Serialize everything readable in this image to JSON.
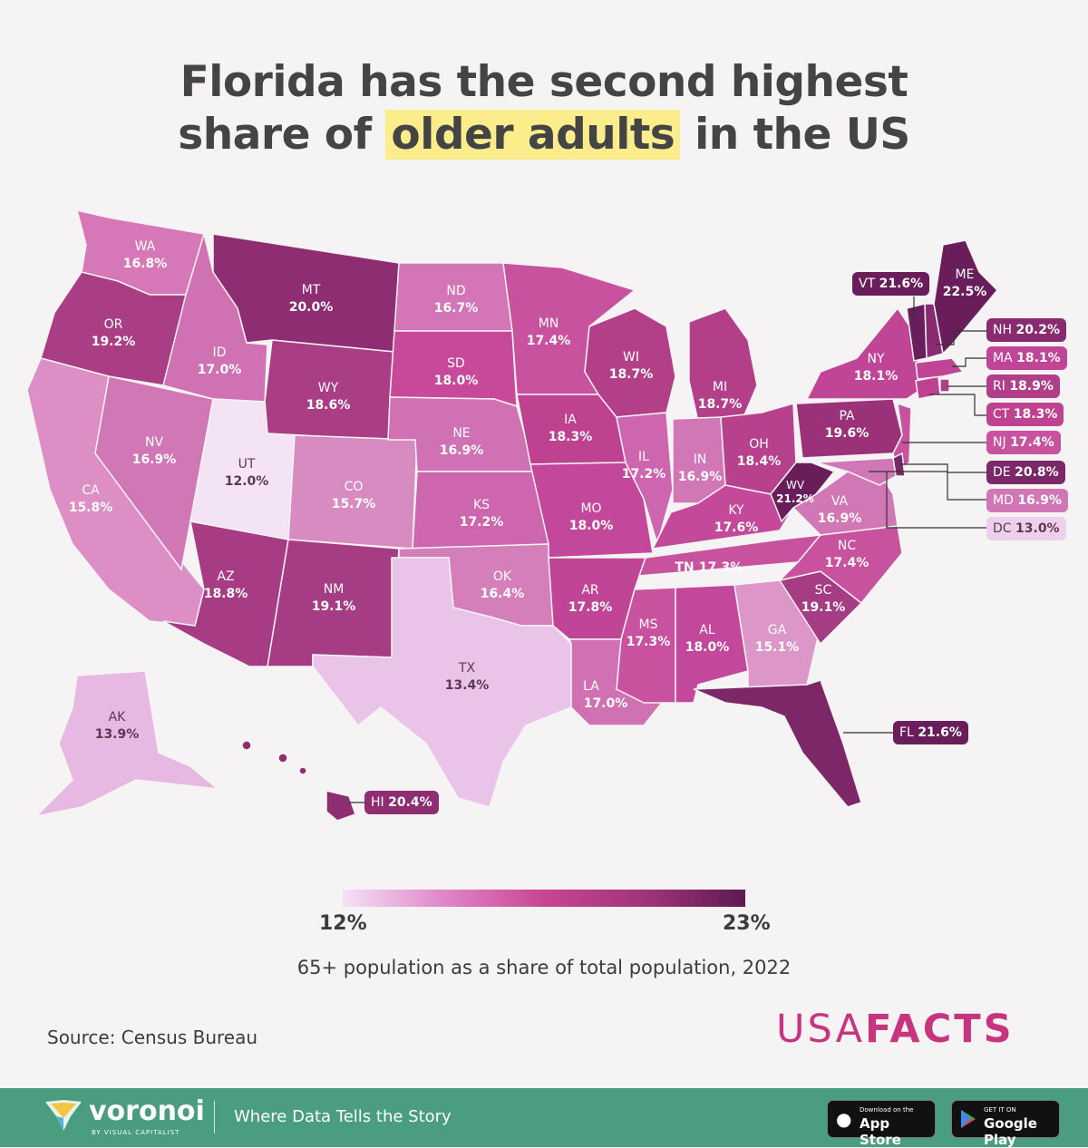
{
  "title": {
    "line1": "Florida has the second highest",
    "line2_prefix": "share of",
    "line2_highlight": "older adults",
    "line2_suffix": "in the US"
  },
  "states": {
    "WA": {
      "abbr": "WA",
      "value": "16.8%"
    },
    "OR": {
      "abbr": "OR",
      "value": "19.2%"
    },
    "CA": {
      "abbr": "CA",
      "value": "15.8%"
    },
    "NV": {
      "abbr": "NV",
      "value": "16.9%"
    },
    "ID": {
      "abbr": "ID",
      "value": "17.0%"
    },
    "MT": {
      "abbr": "MT",
      "value": "20.0%"
    },
    "WY": {
      "abbr": "WY",
      "value": "18.6%"
    },
    "UT": {
      "abbr": "UT",
      "value": "12.0%"
    },
    "CO": {
      "abbr": "CO",
      "value": "15.7%"
    },
    "AZ": {
      "abbr": "AZ",
      "value": "18.8%"
    },
    "NM": {
      "abbr": "NM",
      "value": "19.1%"
    },
    "ND": {
      "abbr": "ND",
      "value": "16.7%"
    },
    "SD": {
      "abbr": "SD",
      "value": "18.0%"
    },
    "NE": {
      "abbr": "NE",
      "value": "16.9%"
    },
    "KS": {
      "abbr": "KS",
      "value": "17.2%"
    },
    "OK": {
      "abbr": "OK",
      "value": "16.4%"
    },
    "TX": {
      "abbr": "TX",
      "value": "13.4%"
    },
    "MN": {
      "abbr": "MN",
      "value": "17.4%"
    },
    "IA": {
      "abbr": "IA",
      "value": "18.3%"
    },
    "MO": {
      "abbr": "MO",
      "value": "18.0%"
    },
    "AR": {
      "abbr": "AR",
      "value": "17.8%"
    },
    "LA": {
      "abbr": "LA",
      "value": "17.0%"
    },
    "WI": {
      "abbr": "WI",
      "value": "18.7%"
    },
    "IL": {
      "abbr": "IL",
      "value": "17.2%"
    },
    "MI": {
      "abbr": "MI",
      "value": "18.7%"
    },
    "IN": {
      "abbr": "IN",
      "value": "16.9%"
    },
    "OH": {
      "abbr": "OH",
      "value": "18.4%"
    },
    "KY": {
      "abbr": "KY",
      "value": "17.6%"
    },
    "TN": {
      "abbr": "TN",
      "value": "17.3%"
    },
    "MS": {
      "abbr": "MS",
      "value": "17.3%"
    },
    "AL": {
      "abbr": "AL",
      "value": "18.0%"
    },
    "GA": {
      "abbr": "GA",
      "value": "15.1%"
    },
    "SC": {
      "abbr": "SC",
      "value": "19.1%"
    },
    "NC": {
      "abbr": "NC",
      "value": "17.4%"
    },
    "VA": {
      "abbr": "VA",
      "value": "16.9%"
    },
    "WV": {
      "abbr": "WV",
      "value": "21.2%"
    },
    "PA": {
      "abbr": "PA",
      "value": "19.6%"
    },
    "NY": {
      "abbr": "NY",
      "value": "18.1%"
    },
    "ME": {
      "abbr": "ME",
      "value": "22.5%"
    },
    "AK": {
      "abbr": "AK",
      "value": "13.9%"
    }
  },
  "callouts": {
    "VT": {
      "abbr": "VT",
      "value": "21.6%"
    },
    "NH": {
      "abbr": "NH",
      "value": "20.2%"
    },
    "MA": {
      "abbr": "MA",
      "value": "18.1%"
    },
    "RI": {
      "abbr": "RI",
      "value": "18.9%"
    },
    "CT": {
      "abbr": "CT",
      "value": "18.3%"
    },
    "NJ": {
      "abbr": "NJ",
      "value": "17.4%"
    },
    "DE": {
      "abbr": "DE",
      "value": "20.8%"
    },
    "MD": {
      "abbr": "MD",
      "value": "16.9%"
    },
    "DC": {
      "abbr": "DC",
      "value": "13.0%"
    },
    "FL": {
      "abbr": "FL",
      "value": "21.6%"
    },
    "HI": {
      "abbr": "HI",
      "value": "20.4%"
    }
  },
  "legend": {
    "min": "12%",
    "max": "23%",
    "caption": "65+ population as a share of total population, 2022",
    "min_value": 12,
    "max_value": 23
  },
  "source": "Source: Census Bureau",
  "brand": {
    "part1": "USA",
    "part2": "FACTS"
  },
  "footer": {
    "brand": "voronoi",
    "sub": "BY VISUAL CAPITALIST",
    "tagline": "Where Data Tells the Story",
    "app_small": "Download on the",
    "app_big": "App Store",
    "play_small": "GET IT ON",
    "play_big": "Google Play"
  },
  "colors": {
    "low": "#f3e3f4",
    "mid": "#c84592",
    "high": "#5e1a52",
    "highlight": "#fbed8c",
    "footer": "#4a9d7e",
    "brand": "#c8357f"
  }
}
